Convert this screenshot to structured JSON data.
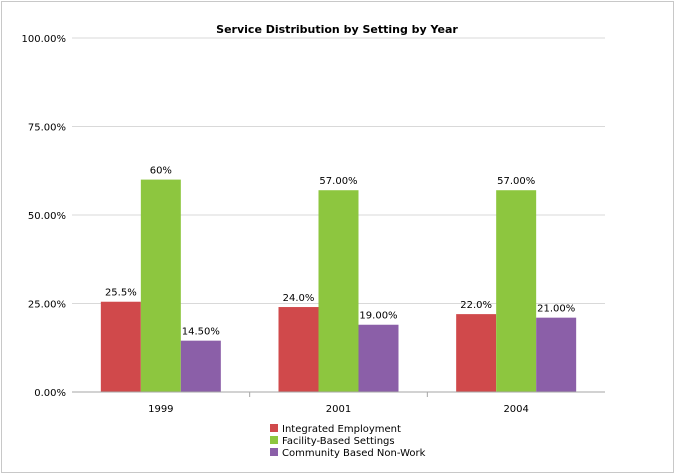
{
  "chart_data": {
    "type": "bar",
    "title": "Service Distribution by Setting by Year",
    "xlabel": "",
    "ylabel": "",
    "categories": [
      "1999",
      "2001",
      "2004"
    ],
    "ylim": [
      0,
      100
    ],
    "yticks": [
      0,
      25,
      50,
      75,
      100
    ],
    "ytick_labels": [
      "0.00%",
      "25.00%",
      "50.00%",
      "75.00%",
      "100.00%"
    ],
    "grid": true,
    "legend_position": "bottom",
    "series": [
      {
        "name": "Integrated Employment",
        "color": "#d0494b",
        "values": [
          25.5,
          24.0,
          22.0
        ],
        "labels": [
          "25.5%",
          "24.0%",
          "22.0%"
        ]
      },
      {
        "name": "Facility-Based Settings",
        "color": "#8dc63f",
        "values": [
          60,
          57,
          57
        ],
        "labels": [
          "60%",
          "57.00%",
          "57.00%"
        ]
      },
      {
        "name": "Community Based Non-Work",
        "color": "#8b5fa8",
        "values": [
          14.5,
          19,
          21
        ],
        "labels": [
          "14.50%",
          "19.00%",
          "21.00%"
        ]
      }
    ]
  }
}
